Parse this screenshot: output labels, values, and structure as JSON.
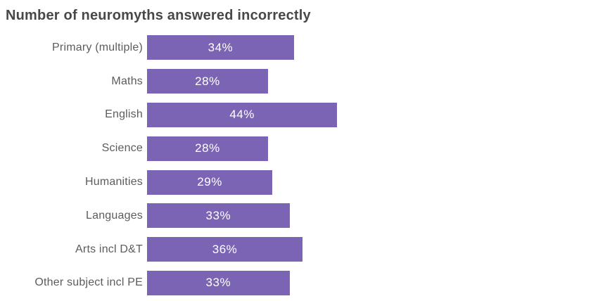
{
  "title": "Number of neuromyths answered incorrectly",
  "colors": {
    "bar": "#7b64b4",
    "title_text": "#484848",
    "label_text": "#5c5c5c",
    "value_text": "#ffffff",
    "background": "#ffffff"
  },
  "chart_data": {
    "type": "bar",
    "orientation": "horizontal",
    "title": "Number of neuromyths answered incorrectly",
    "categories": [
      "Primary (multiple)",
      "Maths",
      "English",
      "Science",
      "Humanities",
      "Languages",
      "Arts incl D&T",
      "Other subject incl PE"
    ],
    "values": [
      34,
      28,
      44,
      28,
      29,
      33,
      36,
      33
    ],
    "value_labels": [
      "34%",
      "28%",
      "44%",
      "28%",
      "29%",
      "33%",
      "36%",
      "33%"
    ],
    "unit": "%",
    "xlabel": "",
    "ylabel": "",
    "xlim": [
      0,
      106
    ],
    "axis_visible": false,
    "grid": false,
    "legend": false,
    "bar_color": "#7b64b4",
    "value_label_position": "center-inside"
  }
}
